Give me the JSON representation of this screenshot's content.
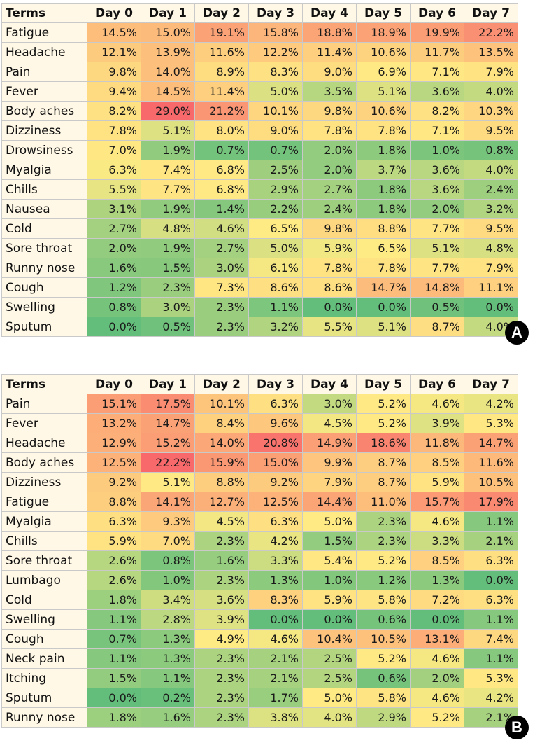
{
  "chart_data": [
    {
      "type": "heatmap",
      "panel_label": "A",
      "header": "Terms",
      "columns": [
        "Day 0",
        "Day 1",
        "Day 2",
        "Day 3",
        "Day 4",
        "Day 5",
        "Day 6",
        "Day 7"
      ],
      "unit": "%",
      "rows": [
        {
          "term": "Fatigue",
          "values": [
            14.5,
            15.0,
            19.1,
            15.8,
            18.8,
            18.9,
            19.9,
            22.2
          ]
        },
        {
          "term": "Headache",
          "values": [
            12.1,
            13.9,
            11.6,
            12.2,
            11.4,
            10.6,
            11.7,
            13.5
          ]
        },
        {
          "term": "Pain",
          "values": [
            9.8,
            14.0,
            8.9,
            8.3,
            9.0,
            6.9,
            7.1,
            7.9
          ]
        },
        {
          "term": "Fever",
          "values": [
            9.4,
            14.5,
            11.4,
            5.0,
            3.5,
            5.1,
            3.6,
            4.0
          ]
        },
        {
          "term": "Body aches",
          "values": [
            8.2,
            29.0,
            21.2,
            10.1,
            9.8,
            10.6,
            8.2,
            10.3
          ]
        },
        {
          "term": "Dizziness",
          "values": [
            7.8,
            5.1,
            8.0,
            9.0,
            7.8,
            7.8,
            7.1,
            9.5
          ]
        },
        {
          "term": "Drowsiness",
          "values": [
            7.0,
            1.9,
            0.7,
            0.7,
            2.0,
            1.8,
            1.0,
            0.8
          ]
        },
        {
          "term": "Myalgia",
          "values": [
            6.3,
            7.4,
            6.8,
            2.5,
            2.0,
            3.7,
            3.6,
            4.0
          ]
        },
        {
          "term": "Chills",
          "values": [
            5.5,
            7.7,
            6.8,
            2.9,
            2.7,
            1.8,
            3.6,
            2.4
          ]
        },
        {
          "term": "Nausea",
          "values": [
            3.1,
            1.9,
            1.4,
            2.2,
            2.4,
            1.8,
            2.0,
            3.2
          ]
        },
        {
          "term": "Cold",
          "values": [
            2.7,
            4.8,
            4.6,
            6.5,
            9.8,
            8.8,
            7.7,
            9.5
          ]
        },
        {
          "term": "Sore throat",
          "values": [
            2.0,
            1.9,
            2.7,
            5.0,
            5.9,
            6.5,
            5.1,
            4.8
          ]
        },
        {
          "term": "Runny nose",
          "values": [
            1.6,
            1.5,
            3.0,
            6.1,
            7.8,
            7.8,
            7.7,
            7.9
          ]
        },
        {
          "term": "Cough",
          "values": [
            1.2,
            2.3,
            7.3,
            8.6,
            8.6,
            14.7,
            14.8,
            11.1
          ]
        },
        {
          "term": "Swelling",
          "values": [
            0.8,
            3.0,
            2.3,
            1.1,
            0.0,
            0.0,
            0.5,
            0.0
          ]
        },
        {
          "term": "Sputum",
          "values": [
            0.0,
            0.5,
            2.3,
            3.2,
            5.5,
            5.1,
            8.7,
            4.0
          ]
        }
      ]
    },
    {
      "type": "heatmap",
      "panel_label": "B",
      "header": "Terms",
      "columns": [
        "Day 0",
        "Day 1",
        "Day 2",
        "Day 3",
        "Day 4",
        "Day 5",
        "Day 6",
        "Day 7"
      ],
      "unit": "%",
      "rows": [
        {
          "term": "Pain",
          "values": [
            15.1,
            17.5,
            10.1,
            6.3,
            3.0,
            5.2,
            4.6,
            4.2
          ]
        },
        {
          "term": "Fever",
          "values": [
            13.2,
            14.7,
            8.4,
            9.6,
            4.5,
            5.2,
            3.9,
            5.3
          ]
        },
        {
          "term": "Headache",
          "values": [
            12.9,
            15.2,
            14.0,
            20.8,
            14.9,
            18.6,
            11.8,
            14.7
          ]
        },
        {
          "term": "Body aches",
          "values": [
            12.5,
            22.2,
            15.9,
            15.0,
            9.9,
            8.7,
            8.5,
            11.6
          ]
        },
        {
          "term": "Dizziness",
          "values": [
            9.2,
            5.1,
            8.8,
            9.2,
            7.9,
            8.7,
            5.9,
            10.5
          ]
        },
        {
          "term": "Fatigue",
          "values": [
            8.8,
            14.1,
            12.7,
            12.5,
            14.4,
            11.0,
            15.7,
            17.9
          ]
        },
        {
          "term": "Myalgia",
          "values": [
            6.3,
            9.3,
            4.5,
            6.3,
            5.0,
            2.3,
            4.6,
            1.1
          ]
        },
        {
          "term": "Chills",
          "values": [
            5.9,
            7.0,
            2.3,
            4.2,
            1.5,
            2.3,
            3.3,
            2.1
          ]
        },
        {
          "term": "Sore throat",
          "values": [
            2.6,
            0.8,
            1.6,
            3.3,
            5.4,
            5.2,
            8.5,
            6.3
          ]
        },
        {
          "term": "Lumbago",
          "values": [
            2.6,
            1.0,
            2.3,
            1.3,
            1.0,
            1.2,
            1.3,
            0.0
          ]
        },
        {
          "term": "Cold",
          "values": [
            1.8,
            3.4,
            3.6,
            8.3,
            5.9,
            5.8,
            7.2,
            6.3
          ]
        },
        {
          "term": "Swelling",
          "values": [
            1.1,
            2.8,
            3.9,
            0.0,
            0.0,
            0.6,
            0.0,
            1.1
          ]
        },
        {
          "term": "Cough",
          "values": [
            0.7,
            1.3,
            4.9,
            4.6,
            10.4,
            10.5,
            13.1,
            7.4
          ]
        },
        {
          "term": "Neck pain",
          "values": [
            1.1,
            1.3,
            2.3,
            2.1,
            2.5,
            5.2,
            4.6,
            1.1
          ]
        },
        {
          "term": "Itching",
          "values": [
            1.5,
            1.1,
            2.3,
            2.1,
            2.5,
            0.6,
            2.0,
            5.3
          ]
        },
        {
          "term": "Sputum",
          "values": [
            0.0,
            0.2,
            2.3,
            1.7,
            5.0,
            5.8,
            4.6,
            4.2
          ]
        },
        {
          "term": "Runny nose",
          "values": [
            1.8,
            1.6,
            2.3,
            3.8,
            4.0,
            2.9,
            5.2,
            2.1
          ]
        }
      ]
    }
  ],
  "colors": {
    "low": "#63be7b",
    "mid": "#ffeb84",
    "high": "#f8696b",
    "term_bg": "#fff8e6"
  }
}
